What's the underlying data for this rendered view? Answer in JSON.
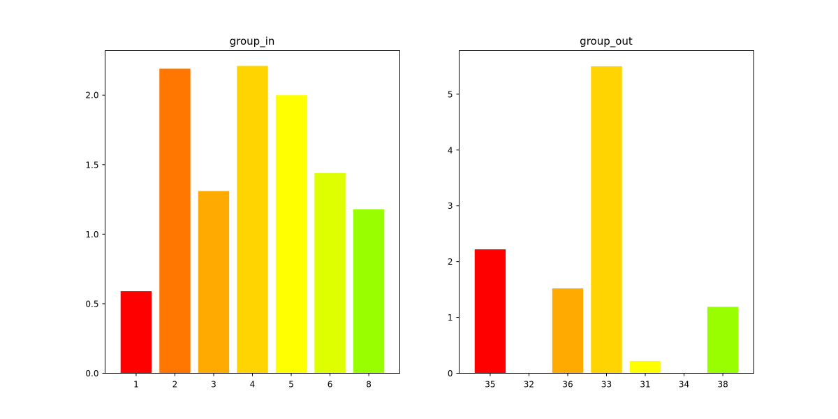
{
  "chart_data": [
    {
      "type": "bar",
      "title": "group_in",
      "xlabel": "",
      "ylabel": "",
      "categories": [
        "1",
        "2",
        "3",
        "4",
        "5",
        "6",
        "8"
      ],
      "values": [
        0.59,
        2.19,
        1.31,
        2.21,
        2.0,
        1.44,
        1.18
      ],
      "colors": [
        "#ff0000",
        "#ff7700",
        "#ffaa00",
        "#ffd400",
        "#ffff00",
        "#ddff00",
        "#99ff00"
      ],
      "ylim": [
        0,
        2.32
      ],
      "yticks": [
        0.0,
        0.5,
        1.0,
        1.5,
        2.0
      ],
      "ytick_labels": [
        "0.0",
        "0.5",
        "1.0",
        "1.5",
        "2.0"
      ],
      "grid": false
    },
    {
      "type": "bar",
      "title": "group_out",
      "xlabel": "",
      "ylabel": "",
      "categories": [
        "35",
        "32",
        "36",
        "33",
        "31",
        "34",
        "38"
      ],
      "values": [
        2.22,
        0,
        1.52,
        5.5,
        0.22,
        0,
        1.19
      ],
      "colors": [
        "#ff0000",
        "#ff7700",
        "#ffaa00",
        "#ffd400",
        "#ffff00",
        "#ddff00",
        "#99ff00"
      ],
      "ylim": [
        0,
        5.78
      ],
      "yticks": [
        0,
        1,
        2,
        3,
        4,
        5
      ],
      "ytick_labels": [
        "0",
        "1",
        "2",
        "3",
        "4",
        "5"
      ],
      "grid": false
    }
  ]
}
